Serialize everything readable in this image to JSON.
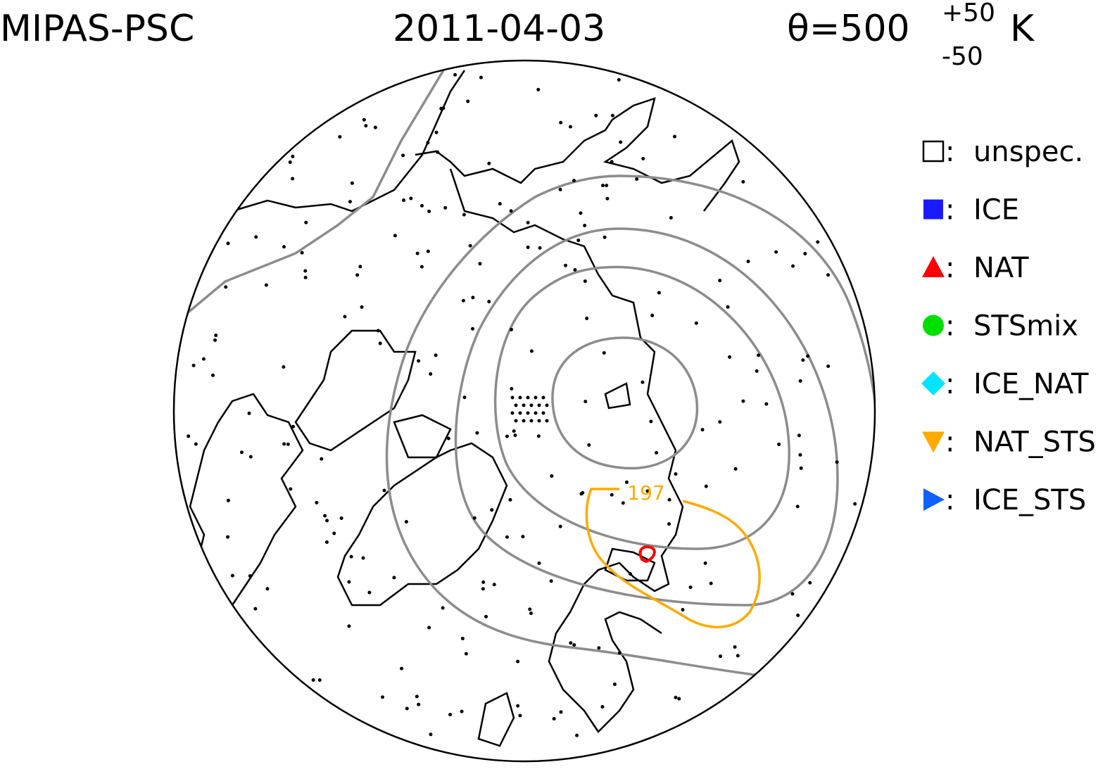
{
  "header": {
    "title": "MIPAS-PSC",
    "date": "2011-04-03",
    "level": {
      "symbol": "θ=500",
      "upper": "+50",
      "lower": "-50",
      "unit": "K"
    }
  },
  "map": {
    "contour_label": "197"
  },
  "legend": {
    "separator": ":",
    "items": [
      {
        "label": "unspec.",
        "marker": "square",
        "color": "#ffffff"
      },
      {
        "label": "ICE",
        "marker": "square",
        "color": "#1a1aff"
      },
      {
        "label": "NAT",
        "marker": "triangle-up",
        "color": "#ff0000"
      },
      {
        "label": "STSmix",
        "marker": "circle",
        "color": "#00e000"
      },
      {
        "label": "ICE_NAT",
        "marker": "diamond",
        "color": "#00e5ff"
      },
      {
        "label": "NAT_STS",
        "marker": "triangle-down",
        "color": "#ffaa00"
      },
      {
        "label": "ICE_STS",
        "marker": "triangle-right",
        "color": "#1060ff"
      }
    ]
  }
}
